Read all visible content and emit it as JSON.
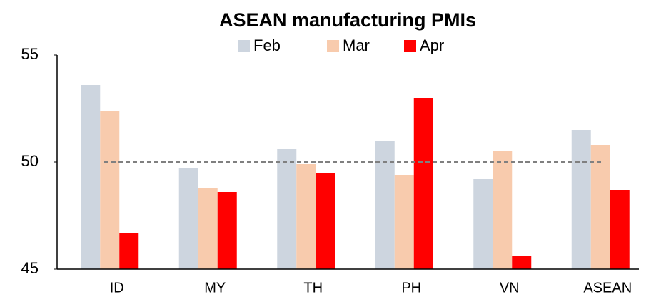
{
  "chart_data": {
    "type": "bar",
    "title": "ASEAN manufacturing PMIs",
    "categories": [
      "ID",
      "MY",
      "TH",
      "PH",
      "VN",
      "ASEAN"
    ],
    "series": [
      {
        "name": "Feb",
        "color": "#cdd5df",
        "values": [
          53.6,
          49.7,
          50.6,
          51.0,
          49.2,
          51.5
        ]
      },
      {
        "name": "Mar",
        "color": "#f8cbad",
        "values": [
          52.4,
          48.8,
          49.9,
          49.4,
          50.5,
          50.8
        ]
      },
      {
        "name": "Apr",
        "color": "#ff0000",
        "values": [
          46.7,
          48.6,
          49.5,
          53.0,
          45.6,
          48.7
        ]
      }
    ],
    "ylim": [
      45,
      55
    ],
    "yticks": [
      45,
      50,
      55
    ],
    "reference_line": 50,
    "legend": "top"
  }
}
